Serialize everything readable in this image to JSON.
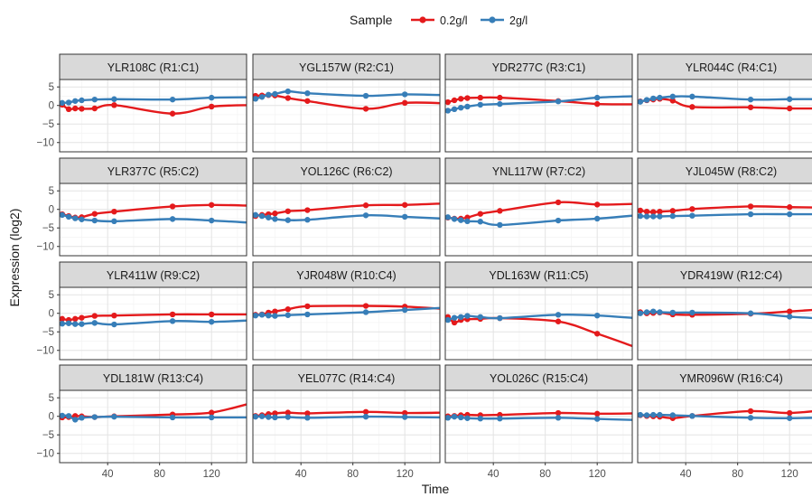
{
  "chart_data": {
    "type": "line",
    "layout": "facet-grid-4x4",
    "legend_position": "top",
    "grid": true,
    "xlabel": "Time",
    "ylabel": "Expression (log2)",
    "legend_title": "Sample",
    "xlim": [
      3,
      147
    ],
    "ylim": [
      -12.5,
      7
    ],
    "x_ticks": [
      40,
      80,
      120
    ],
    "y_ticks": [
      5,
      0,
      -5,
      -10
    ],
    "x_points": [
      5,
      10,
      15,
      20,
      30,
      45,
      90,
      120,
      150
    ],
    "series": [
      {
        "name": "0.2g/l",
        "color": "#E41A1C"
      },
      {
        "name": "2g/l",
        "color": "#377EB8"
      }
    ],
    "panels": [
      {
        "label": "YLR108C (R1:C1)",
        "values": [
          [
            0.2,
            -1.0,
            -0.8,
            -0.9,
            -0.8,
            0.1,
            -2.2,
            -0.3,
            0.1
          ],
          [
            0.7,
            0.8,
            1.2,
            1.4,
            1.6,
            1.7,
            1.6,
            2.1,
            2.2
          ]
        ]
      },
      {
        "label": "YGL157W (R2:C1)",
        "values": [
          [
            2.6,
            2.7,
            2.8,
            2.7,
            2.0,
            1.2,
            -0.9,
            0.7,
            0.6
          ],
          [
            1.8,
            2.3,
            2.9,
            3.1,
            3.8,
            3.3,
            2.6,
            3.0,
            2.8
          ]
        ]
      },
      {
        "label": "YDR277C (R3:C1)",
        "values": [
          [
            0.9,
            1.4,
            1.8,
            2.0,
            2.1,
            2.1,
            1.2,
            0.4,
            0.3
          ],
          [
            -1.4,
            -1.0,
            -0.6,
            -0.3,
            0.2,
            0.4,
            1.1,
            2.1,
            2.5
          ]
        ]
      },
      {
        "label": "YLR044C (R4:C1)",
        "values": [
          [
            1.1,
            1.4,
            1.6,
            1.8,
            1.3,
            -0.4,
            -0.5,
            -0.8,
            -0.8
          ],
          [
            1.0,
            1.5,
            1.9,
            2.1,
            2.4,
            2.4,
            1.6,
            1.7,
            1.7
          ]
        ]
      },
      {
        "label": "YLR377C (R5:C2)",
        "values": [
          [
            -1.3,
            -1.8,
            -2.2,
            -2.1,
            -1.2,
            -0.6,
            0.8,
            1.2,
            1.0
          ],
          [
            -1.5,
            -2.0,
            -2.4,
            -2.7,
            -3.0,
            -3.2,
            -2.6,
            -3.0,
            -3.6
          ]
        ]
      },
      {
        "label": "YOL126C (R6:C2)",
        "values": [
          [
            -1.8,
            -1.5,
            -1.3,
            -1.1,
            -0.5,
            -0.2,
            1.1,
            1.2,
            1.6
          ],
          [
            -1.5,
            -1.8,
            -2.2,
            -2.6,
            -2.9,
            -2.8,
            -1.6,
            -2.0,
            -2.5
          ]
        ]
      },
      {
        "label": "YNL117W (R7:C2)",
        "values": [
          [
            -2.2,
            -2.5,
            -2.5,
            -2.2,
            -1.2,
            -0.4,
            1.9,
            1.3,
            1.5
          ],
          [
            -2.1,
            -2.6,
            -2.9,
            -3.2,
            -3.3,
            -4.2,
            -3.0,
            -2.5,
            -1.6
          ]
        ]
      },
      {
        "label": "YJL045W (R8:C2)",
        "values": [
          [
            -0.3,
            -0.6,
            -0.7,
            -0.6,
            -0.4,
            0.1,
            0.8,
            0.6,
            0.5
          ],
          [
            -1.8,
            -1.9,
            -1.9,
            -1.9,
            -1.8,
            -1.7,
            -1.3,
            -1.3,
            -1.3
          ]
        ]
      },
      {
        "label": "YLR411W (R9:C2)",
        "values": [
          [
            -1.5,
            -1.8,
            -1.5,
            -1.2,
            -0.7,
            -0.6,
            -0.3,
            -0.3,
            -0.3
          ],
          [
            -2.8,
            -2.7,
            -2.9,
            -2.9,
            -2.6,
            -3.0,
            -2.1,
            -2.3,
            -1.9
          ]
        ]
      },
      {
        "label": "YJR048W (R10:C4)",
        "values": [
          [
            -0.4,
            -0.3,
            0.2,
            0.5,
            1.1,
            1.9,
            2.0,
            1.8,
            1.2
          ],
          [
            -0.6,
            -0.4,
            -0.6,
            -0.7,
            -0.5,
            -0.3,
            0.3,
            0.9,
            1.5
          ]
        ]
      },
      {
        "label": "YDL163W (R11:C5)",
        "values": [
          [
            -1.0,
            -2.5,
            -1.8,
            -1.6,
            -1.5,
            -1.3,
            -2.2,
            -5.5,
            -9.2
          ],
          [
            -1.8,
            -1.2,
            -1.0,
            -0.7,
            -1.0,
            -1.3,
            -0.4,
            -0.6,
            -1.3
          ]
        ]
      },
      {
        "label": "YDR419W (R12:C4)",
        "values": [
          [
            0.3,
            0.0,
            0.1,
            0.2,
            -0.3,
            -0.4,
            -0.1,
            0.5,
            1.2
          ],
          [
            0.0,
            0.3,
            0.5,
            0.3,
            0.2,
            0.2,
            0.0,
            -0.9,
            -1.5
          ]
        ]
      },
      {
        "label": "YDL181W (R13:C4)",
        "values": [
          [
            -0.3,
            -0.2,
            0.1,
            0.0,
            -0.2,
            0.0,
            0.5,
            1.0,
            3.5
          ],
          [
            0.2,
            0.1,
            -0.9,
            -0.4,
            -0.2,
            -0.1,
            -0.3,
            -0.3,
            -0.3
          ]
        ]
      },
      {
        "label": "YEL077C (R14:C4)",
        "values": [
          [
            0.1,
            0.3,
            0.6,
            0.8,
            1.0,
            0.8,
            1.2,
            0.9,
            1.0
          ],
          [
            -0.1,
            0.0,
            -0.2,
            -0.3,
            -0.2,
            -0.4,
            -0.1,
            -0.2,
            -0.3
          ]
        ]
      },
      {
        "label": "YOL026C (R15:C4)",
        "values": [
          [
            0.0,
            0.1,
            0.3,
            0.4,
            0.3,
            0.4,
            0.9,
            0.7,
            0.8
          ],
          [
            -0.4,
            -0.1,
            -0.3,
            -0.5,
            -0.6,
            -0.6,
            -0.4,
            -0.7,
            -1.0
          ]
        ]
      },
      {
        "label": "YMR096W (R16:C4)",
        "values": [
          [
            0.3,
            0.1,
            0.0,
            -0.1,
            -0.5,
            0.1,
            1.4,
            0.9,
            1.8
          ],
          [
            0.4,
            0.3,
            0.4,
            0.4,
            0.3,
            0.1,
            -0.4,
            -0.5,
            -0.3
          ]
        ]
      }
    ]
  }
}
